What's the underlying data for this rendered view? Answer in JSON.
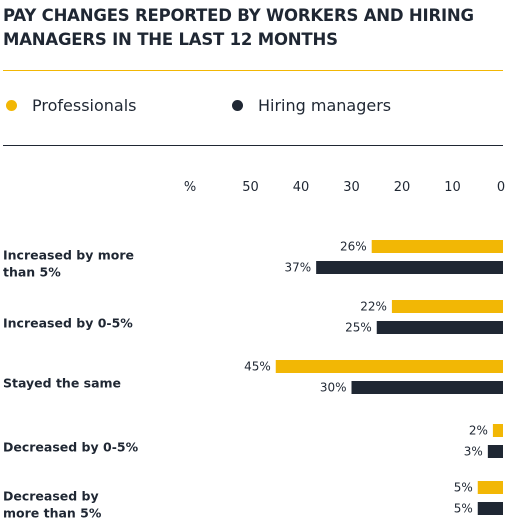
{
  "chart_data": {
    "type": "bar",
    "orientation": "horizontal",
    "title": "PAY CHANGES REPORTED BY WORKERS AND HIRING MANAGERS IN THE LAST 12 MONTHS",
    "unit_label": "%",
    "x_ticks": [
      50,
      40,
      30,
      20,
      10,
      0
    ],
    "xlim": [
      0,
      50
    ],
    "x_reversed": true,
    "legend_position": "top",
    "grid": false,
    "categories": [
      [
        "Increased by more",
        "than 5%"
      ],
      [
        "Increased by 0-5%"
      ],
      [
        "Stayed the same"
      ],
      [
        "Decreased by 0-5%"
      ],
      [
        "Decreased by",
        "more than 5%"
      ]
    ],
    "series": [
      {
        "name": "Professionals",
        "color": "#f2b705",
        "values": [
          26,
          22,
          45,
          2,
          5
        ]
      },
      {
        "name": "Hiring managers",
        "color": "#1f2733",
        "values": [
          37,
          25,
          30,
          3,
          5
        ]
      }
    ]
  }
}
